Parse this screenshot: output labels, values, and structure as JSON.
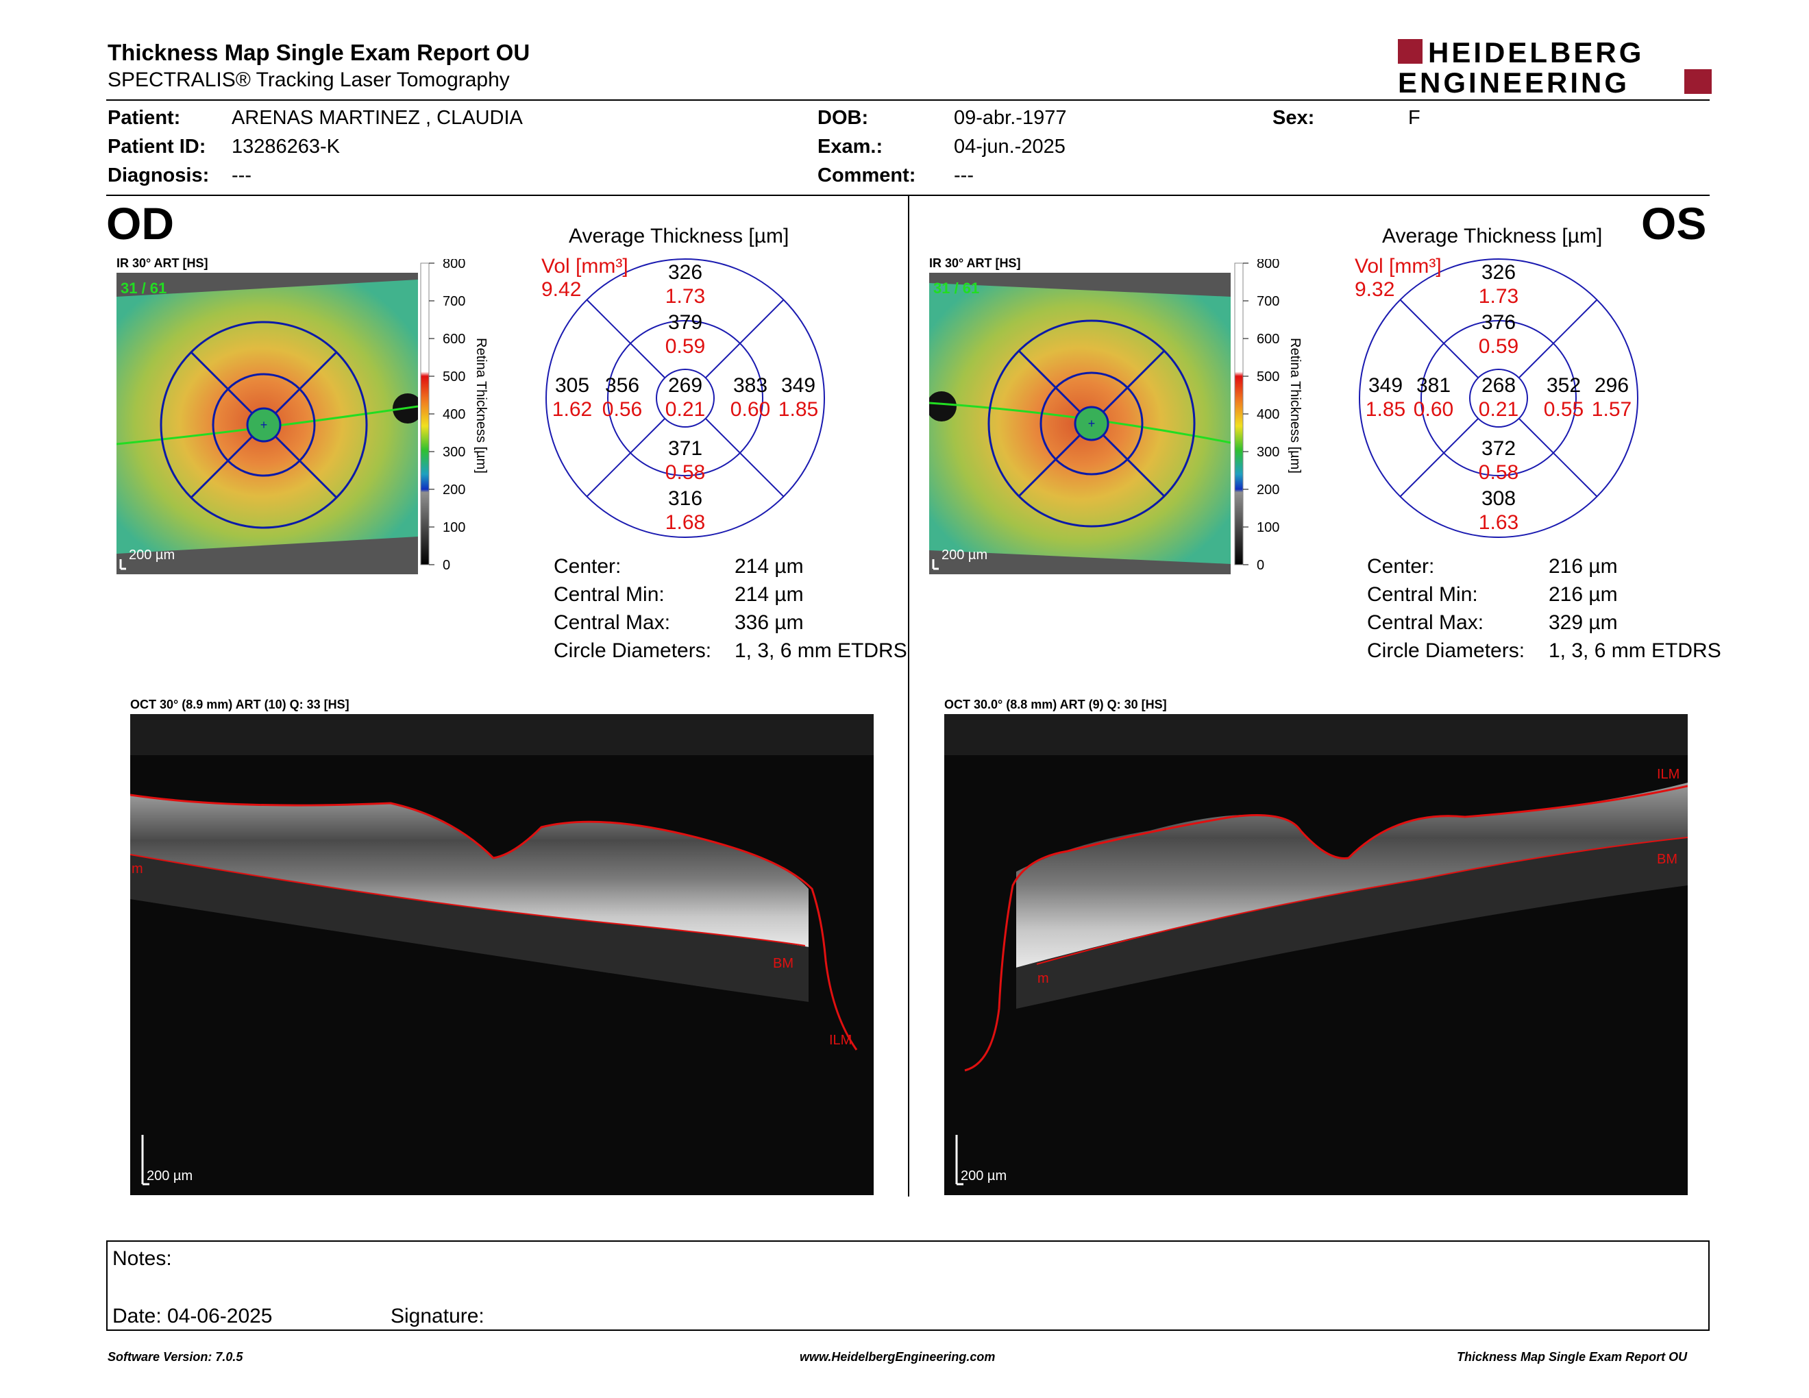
{
  "header": {
    "title": "Thickness Map Single Exam Report OU",
    "subtitle": "SPECTRALIS® Tracking Laser Tomography",
    "logo_line1": "HEIDELBERG",
    "logo_line2": "ENGINEERING",
    "logo_color": "#9b1b30"
  },
  "patient": {
    "patient_label": "Patient:",
    "patient_value": "ARENAS MARTINEZ , CLAUDIA",
    "id_label": "Patient ID:",
    "id_value": "13286263-K",
    "diagnosis_label": "Diagnosis:",
    "diagnosis_value": "---",
    "dob_label": "DOB:",
    "dob_value": "09-abr.-1977",
    "exam_label": "Exam.:",
    "exam_value": "04-jun.-2025",
    "comment_label": "Comment:",
    "comment_value": "---",
    "sex_label": "Sex:",
    "sex_value": "F"
  },
  "od": {
    "eye_label": "OD",
    "fundus_caption": "IR 30° ART [HS]",
    "frame_count": "31 / 61",
    "scale_label": "200 µm",
    "colorbar_ticks": [
      "800",
      "700",
      "600",
      "500",
      "400",
      "300",
      "200",
      "100",
      "0"
    ],
    "colorbar_title": "Retina Thickness [µm]",
    "avg_title": "Average Thickness [µm]",
    "vol_label": "Vol [mm³]",
    "vol_value": "9.42",
    "sectors": {
      "outer_top": [
        "326",
        "1.73"
      ],
      "inner_top": [
        "379",
        "0.59"
      ],
      "outer_left": [
        "305",
        "1.62"
      ],
      "inner_left": [
        "356",
        "0.56"
      ],
      "center": [
        "269",
        "0.21"
      ],
      "inner_right": [
        "383",
        "0.60"
      ],
      "outer_right": [
        "349",
        "1.85"
      ],
      "inner_bottom": [
        "371",
        "0.58"
      ],
      "outer_bottom": [
        "316",
        "1.68"
      ]
    },
    "stats": [
      {
        "label": "Center:",
        "value": "214 µm"
      },
      {
        "label": "Central Min:",
        "value": "214 µm"
      },
      {
        "label": "Central Max:",
        "value": "336 µm"
      },
      {
        "label": "Circle Diameters:",
        "value": "1, 3, 6 mm ETDRS"
      }
    ],
    "oct_caption": "OCT 30° (8.9 mm) ART (10) Q: 33 [HS]",
    "oct_labels": {
      "ilm": "ILM",
      "bm": "BM",
      "left": "m"
    },
    "oct_scale": "200 µm"
  },
  "os": {
    "eye_label": "OS",
    "fundus_caption": "IR 30° ART [HS]",
    "frame_count": "31 / 61",
    "scale_label": "200 µm",
    "colorbar_ticks": [
      "800",
      "700",
      "600",
      "500",
      "400",
      "300",
      "200",
      "100",
      "0"
    ],
    "colorbar_title": "Retina Thickness [µm]",
    "avg_title": "Average Thickness [µm]",
    "vol_label": "Vol [mm³]",
    "vol_value": "9.32",
    "sectors": {
      "outer_top": [
        "326",
        "1.73"
      ],
      "inner_top": [
        "376",
        "0.59"
      ],
      "outer_left": [
        "349",
        "1.85"
      ],
      "inner_left": [
        "381",
        "0.60"
      ],
      "center": [
        "268",
        "0.21"
      ],
      "inner_right": [
        "352",
        "0.55"
      ],
      "outer_right": [
        "296",
        "1.57"
      ],
      "inner_bottom": [
        "372",
        "0.58"
      ],
      "outer_bottom": [
        "308",
        "1.63"
      ]
    },
    "stats": [
      {
        "label": "Center:",
        "value": "216 µm"
      },
      {
        "label": "Central Min:",
        "value": "216 µm"
      },
      {
        "label": "Central Max:",
        "value": "329 µm"
      },
      {
        "label": "Circle Diameters:",
        "value": "1, 3, 6 mm ETDRS"
      }
    ],
    "oct_caption": "OCT 30.0° (8.8 mm) ART (9) Q: 30 [HS]",
    "oct_labels": {
      "ilm": "ILM",
      "bm": "BM",
      "left": "m"
    },
    "oct_scale": "200 µm"
  },
  "notes": {
    "notes_label": "Notes:",
    "date_label": "Date: 04-06-2025",
    "signature_label": "Signature:"
  },
  "footer": {
    "left": "Software Version: 7.0.5",
    "center": "www.HeidelbergEngineering.com",
    "right": "Thickness Map Single Exam Report OU"
  }
}
